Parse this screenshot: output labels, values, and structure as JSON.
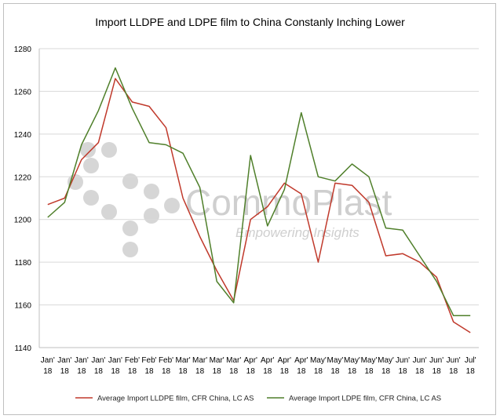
{
  "chart_data": {
    "type": "line",
    "title": "Import LLDPE and LDPE film to China Constanly Inching Lower",
    "xlabel": "",
    "ylabel": "",
    "ylim": [
      1140,
      1280
    ],
    "yticks": [
      1140,
      1160,
      1180,
      1200,
      1220,
      1240,
      1260,
      1280
    ],
    "grid": true,
    "legend_position": "bottom",
    "categories": [
      [
        "Jan'",
        "18"
      ],
      [
        "Jan'",
        "18"
      ],
      [
        "Jan'",
        "18"
      ],
      [
        "Jan'",
        "18"
      ],
      [
        "Jan'",
        "18"
      ],
      [
        "Feb'",
        "18"
      ],
      [
        "Feb'",
        "18"
      ],
      [
        "Feb'",
        "18"
      ],
      [
        "Mar'",
        "18"
      ],
      [
        "Mar'",
        "18"
      ],
      [
        "Mar'",
        "18"
      ],
      [
        "Mar'",
        "18"
      ],
      [
        "Apr'",
        "18"
      ],
      [
        "Apr'",
        "18"
      ],
      [
        "Apr'",
        "18"
      ],
      [
        "Apr'",
        "18"
      ],
      [
        "May'",
        "18"
      ],
      [
        "May'",
        "18"
      ],
      [
        "May'",
        "18"
      ],
      [
        "May'",
        "18"
      ],
      [
        "May'",
        "18"
      ],
      [
        "Jun'",
        "18"
      ],
      [
        "Jun'",
        "18"
      ],
      [
        "Jun'",
        "18"
      ],
      [
        "Jun'",
        "18"
      ],
      [
        "Jul'",
        "18"
      ]
    ],
    "series": [
      {
        "name": "Average Import LLDPE film, CFR China, LC AS",
        "color": "#c0392b",
        "values": [
          1207,
          1210,
          1228,
          1236,
          1266,
          1255,
          1253,
          1243,
          1210,
          1192,
          1176,
          1162,
          1200,
          1206,
          1217,
          1212,
          1180,
          1217,
          1216,
          1208,
          1183,
          1184,
          1180,
          1173,
          1152,
          1147
        ]
      },
      {
        "name": "Average Import LDPE film, CFR China, LC AS",
        "color": "#4f7f2a",
        "values": [
          1201,
          1208,
          1235,
          1251,
          1271,
          1252,
          1236,
          1235,
          1231,
          1215,
          1171,
          1161,
          1230,
          1197,
          1214,
          1250,
          1220,
          1218,
          1226,
          1220,
          1196,
          1195,
          1183,
          1171,
          1155,
          1155
        ]
      }
    ]
  },
  "watermark": {
    "brand": "CommoPlast",
    "tagline": "Empowering Insights"
  }
}
